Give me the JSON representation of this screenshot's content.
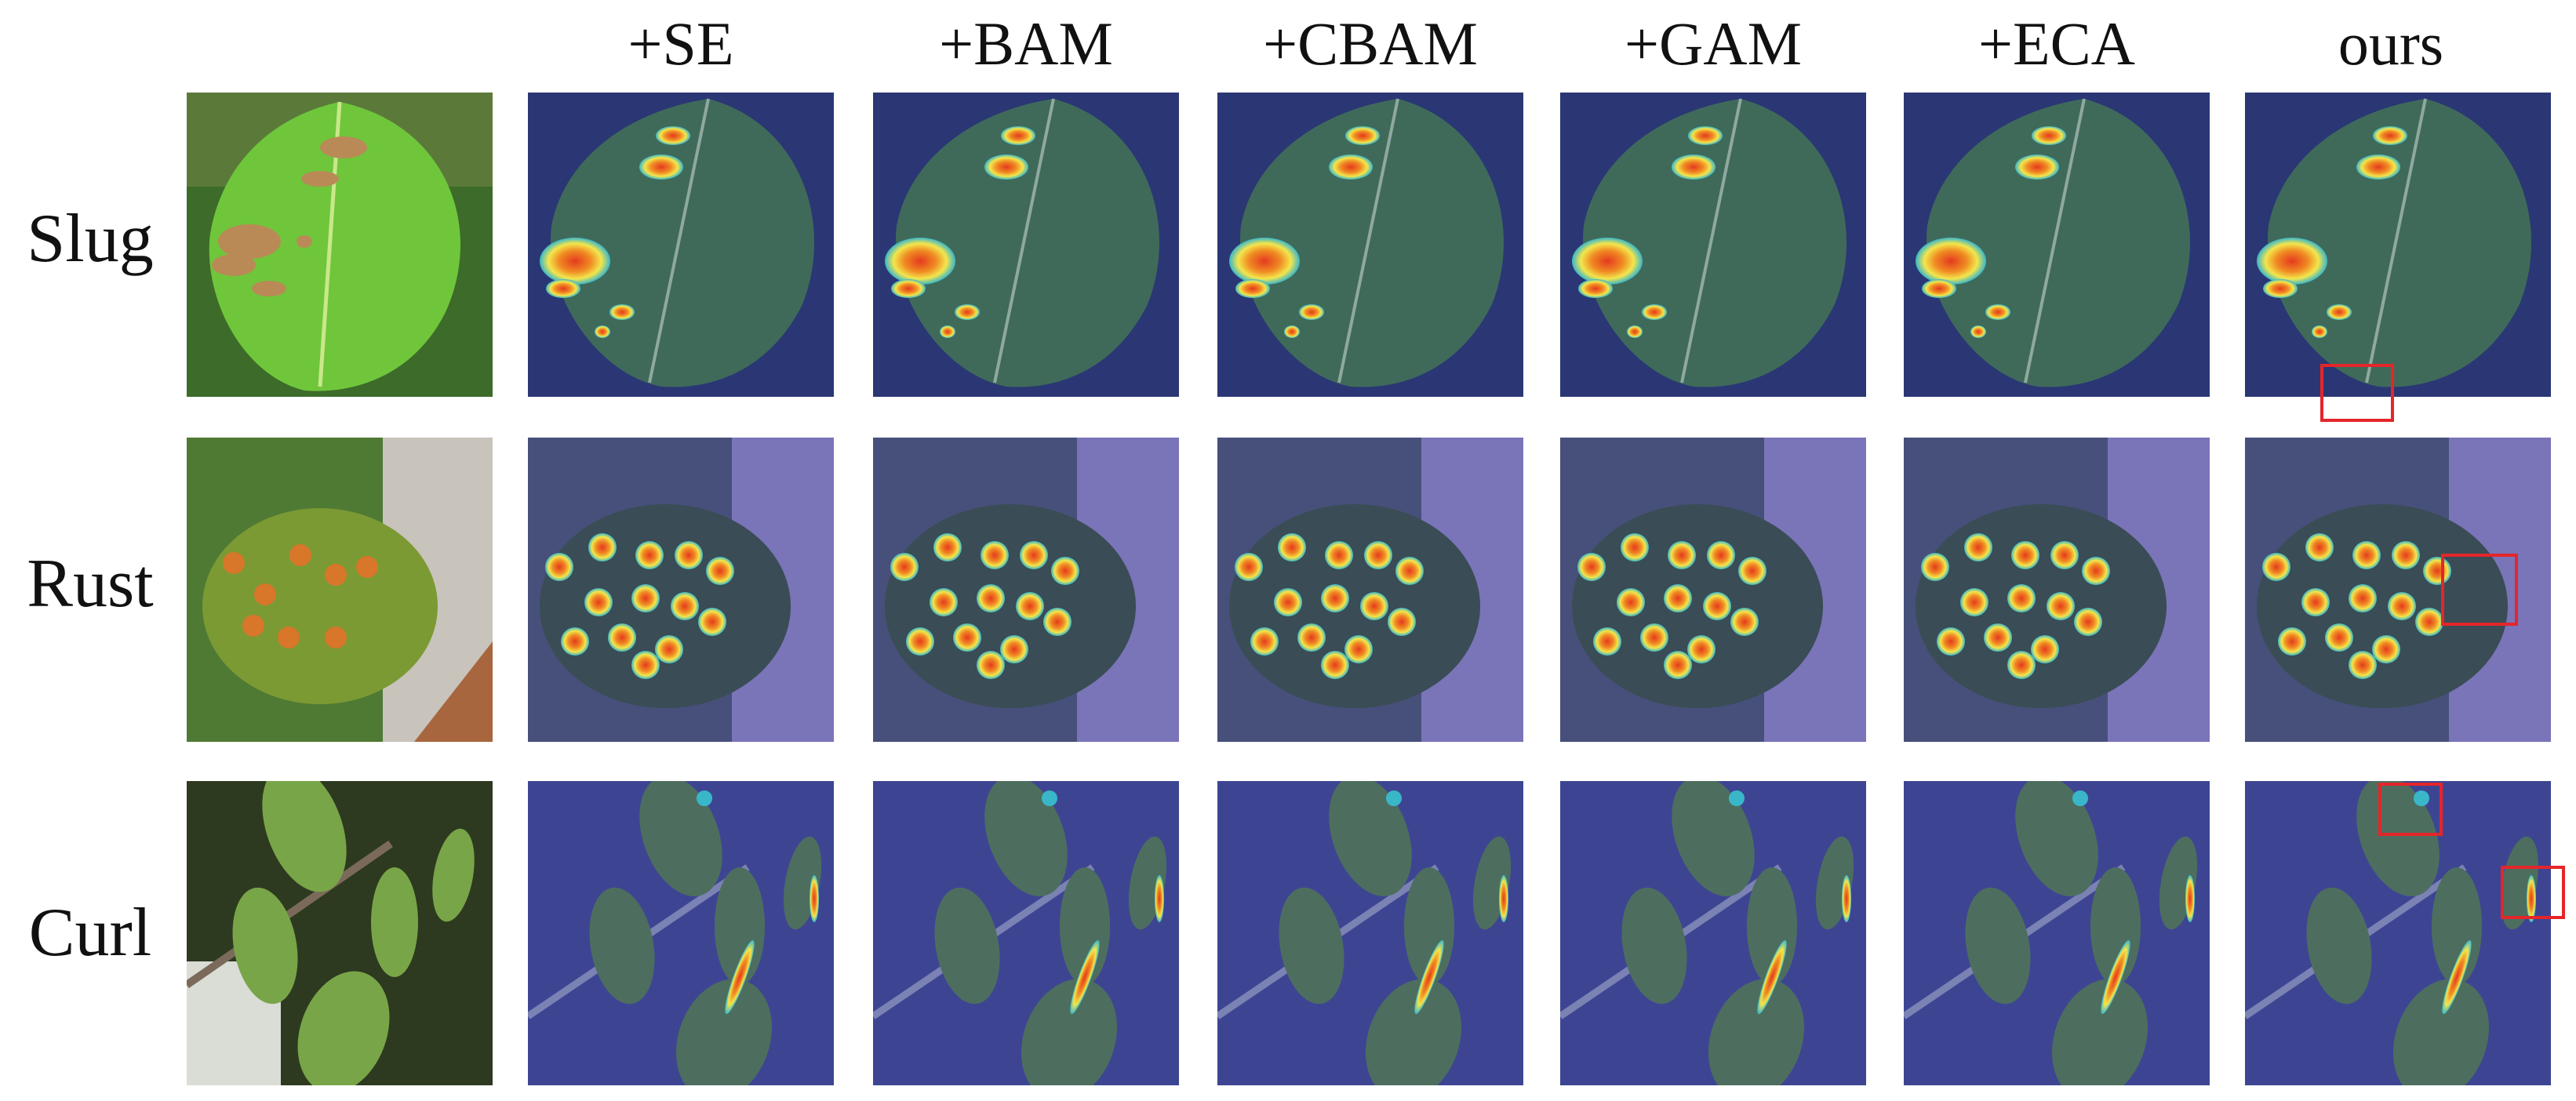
{
  "columns": {
    "se": "+SE",
    "bam": "+BAM",
    "cbam": "+CBAM",
    "gam": "+GAM",
    "eca": "+ECA",
    "ours": "ours"
  },
  "rows": {
    "slug": "Slug",
    "rust": "Rust",
    "curl": "Curl"
  },
  "colors": {
    "highlight": "#e4262a",
    "heat_low": "#3b58c8",
    "heat_mid": "#f3e64c",
    "heat_high": "#e43a1f"
  }
}
